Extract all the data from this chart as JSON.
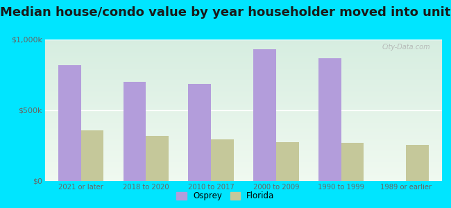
{
  "title": "Median house/condo value by year householder moved into unit",
  "categories": [
    "2021 or later",
    "2018 to 2020",
    "2010 to 2017",
    "2000 to 2009",
    "1990 to 1999",
    "1989 or earlier"
  ],
  "osprey_values": [
    820000,
    700000,
    685000,
    930000,
    870000,
    0
  ],
  "florida_values": [
    360000,
    320000,
    295000,
    275000,
    270000,
    255000
  ],
  "osprey_color": "#b39ddb",
  "florida_color": "#c5c89a",
  "background_outer": "#00e5ff",
  "bg_top": "#d6ede0",
  "bg_bottom": "#f0f9f0",
  "title_fontsize": 13,
  "ylim": [
    0,
    1000000
  ],
  "yticks": [
    0,
    500000,
    1000000
  ],
  "ytick_labels": [
    "$0",
    "$500k",
    "$1,000k"
  ],
  "watermark": "City-Data.com",
  "legend_osprey": "Osprey",
  "legend_florida": "Florida",
  "bar_width": 0.35
}
